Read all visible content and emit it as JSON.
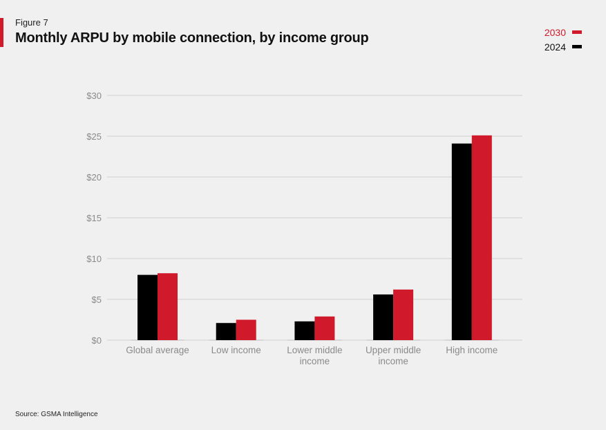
{
  "figure_label": "Figure 7",
  "title": "Monthly ARPU by mobile connection, by income group",
  "source": "Source: GSMA Intelligence",
  "colors": {
    "accent": "#d0192b",
    "s2024": "#000000",
    "s2030": "#d0192b"
  },
  "legend": [
    {
      "name": "2030",
      "color": "#d0192b"
    },
    {
      "name": "2024",
      "color": "#000000"
    }
  ],
  "chart_data": {
    "type": "bar",
    "title": "Monthly ARPU by mobile connection, by income group",
    "categories": [
      [
        "Global average"
      ],
      [
        "Low income"
      ],
      [
        "Lower middle",
        "income"
      ],
      [
        "Upper middle",
        "income"
      ],
      [
        "High income"
      ]
    ],
    "series": [
      {
        "name": "2024",
        "color": "#000000",
        "values": [
          8.0,
          2.1,
          2.3,
          5.6,
          24.1
        ]
      },
      {
        "name": "2030",
        "color": "#d0192b",
        "values": [
          8.2,
          2.5,
          2.9,
          6.2,
          25.1
        ]
      }
    ],
    "yticks": [
      "$0",
      "$5",
      "$10",
      "$15",
      "$20",
      "$25",
      "$30"
    ],
    "ytick_values": [
      0,
      5,
      10,
      15,
      20,
      25,
      30
    ],
    "ylim": [
      0,
      30
    ],
    "grid": true,
    "legend_position": "top-right"
  }
}
